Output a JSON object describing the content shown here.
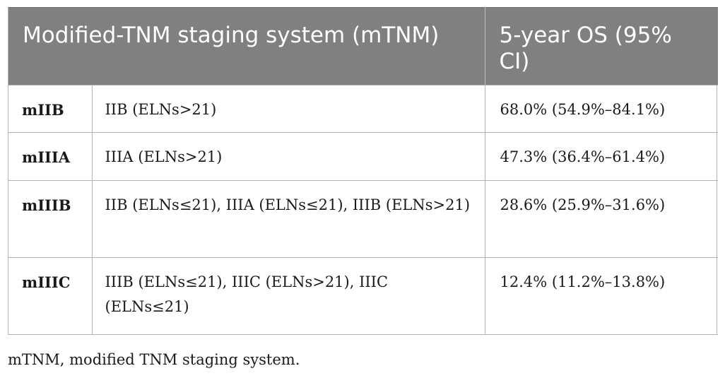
{
  "table": {
    "headers": {
      "staging": "Modified-TNM staging system (mTNM)",
      "os": "5-year OS (95% CI)"
    },
    "rows": [
      {
        "stage": "mIIB",
        "definition": "IIB (ELNs>21)",
        "os": "68.0% (54.9%–84.1%)"
      },
      {
        "stage": "mIIIA",
        "definition": "IIIA (ELNs>21)",
        "os": "47.3% (36.4%–61.4%)"
      },
      {
        "stage": "mIIIB",
        "definition": "IIB (ELNs≤21), IIIA (ELNs≤21), IIIB (ELNs>21)",
        "os": "28.6% (25.9%–31.6%)"
      },
      {
        "stage": "mIIIC",
        "definition": "IIIB (ELNs≤21), IIIC (ELNs>21), IIIC (ELNs≤21)",
        "os": "12.4% (11.2%–13.8%)"
      }
    ]
  },
  "footnote": "mTNM, modified TNM staging system.",
  "colors": {
    "header_bg": "#808080",
    "header_text": "#ffffff",
    "border": "#b3b3b3"
  }
}
